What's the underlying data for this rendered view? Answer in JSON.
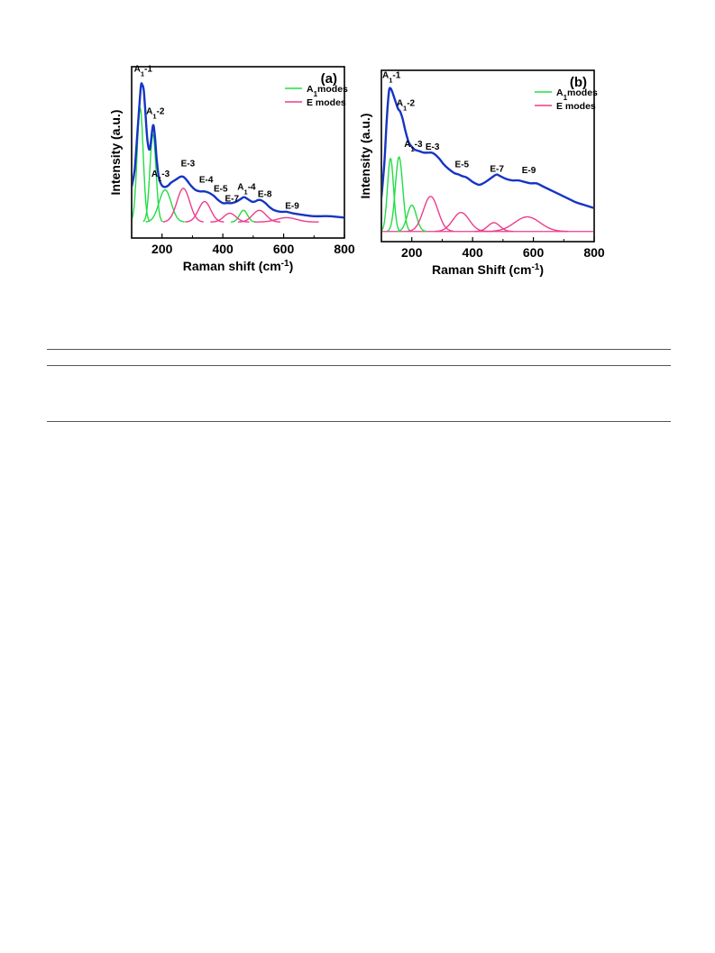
{
  "chart_data": [
    {
      "type": "line",
      "panel_label": "(a)",
      "xlabel_main": "Raman shift",
      "xlabel_paren_open": "(",
      "xlabel_unit": "cm",
      "xlabel_exp": "-1",
      "xlabel_paren_close": ")",
      "ylabel": "Intensity (a.u.)",
      "xlim": [
        100,
        800
      ],
      "ylim": [
        0,
        1
      ],
      "x_ticks": [
        "200",
        "400",
        "600",
        "800"
      ],
      "legend": [
        {
          "sym": "A",
          "sub": "1",
          "rest": "modes",
          "color": "#22dd44"
        },
        {
          "sym": "E modes",
          "sub": "",
          "rest": "",
          "color": "#ee3c8c"
        }
      ],
      "colors": {
        "envelope": "#1535c4",
        "a1": "#22dd44",
        "e": "#ee3c8c"
      },
      "baseline": 0.06,
      "series": [
        {
          "name": "A1 modes",
          "group": "a1",
          "peaks": [
            {
              "center": 128,
              "height": 0.78,
              "width": 10
            },
            {
              "center": 170,
              "height": 0.6,
              "width": 10
            },
            {
              "center": 210,
              "height": 0.22,
              "width": 20
            },
            {
              "center": 468,
              "height": 0.08,
              "width": 13
            }
          ]
        },
        {
          "name": "E modes",
          "group": "e",
          "peaks": [
            {
              "center": 270,
              "height": 0.23,
              "width": 21
            },
            {
              "center": 340,
              "height": 0.14,
              "width": 20
            },
            {
              "center": 423,
              "height": 0.06,
              "width": 20
            },
            {
              "center": 520,
              "height": 0.08,
              "width": 22
            },
            {
              "center": 610,
              "height": 0.03,
              "width": 33
            }
          ]
        },
        {
          "name": "envelope",
          "group": "env",
          "x": [
            100,
            110,
            120,
            130,
            135,
            140,
            145,
            152,
            160,
            170,
            176,
            182,
            190,
            200,
            210,
            220,
            230,
            245,
            260,
            270,
            280,
            295,
            310,
            325,
            340,
            355,
            370,
            385,
            400,
            415,
            430,
            445,
            460,
            470,
            480,
            495,
            505,
            515,
            525,
            540,
            555,
            570,
            590,
            610,
            630,
            660,
            700,
            750,
            800
          ],
          "y": [
            0.3,
            0.42,
            0.7,
            0.98,
            1.0,
            0.96,
            0.82,
            0.62,
            0.56,
            0.72,
            0.66,
            0.5,
            0.36,
            0.31,
            0.3,
            0.31,
            0.33,
            0.35,
            0.37,
            0.37,
            0.35,
            0.31,
            0.28,
            0.27,
            0.27,
            0.26,
            0.24,
            0.21,
            0.19,
            0.19,
            0.19,
            0.2,
            0.22,
            0.23,
            0.22,
            0.2,
            0.2,
            0.21,
            0.21,
            0.19,
            0.16,
            0.14,
            0.13,
            0.13,
            0.12,
            0.11,
            0.1,
            0.1,
            0.09
          ]
        }
      ],
      "annotations": [
        {
          "sym": "A",
          "sub": "1",
          "tail": "-1",
          "x": 138,
          "y": 1.09
        },
        {
          "sym": "A",
          "sub": "1",
          "tail": "-2",
          "x": 178,
          "y": 0.8
        },
        {
          "sym": "A",
          "sub": "1",
          "tail": "-3",
          "x": 195,
          "y": 0.37
        },
        {
          "sym": "E-3",
          "sub": "",
          "tail": "",
          "x": 285,
          "y": 0.44
        },
        {
          "sym": "E-4",
          "sub": "",
          "tail": "",
          "x": 345,
          "y": 0.33
        },
        {
          "sym": "E-5",
          "sub": "",
          "tail": "",
          "x": 393,
          "y": 0.27
        },
        {
          "sym": "E-7",
          "sub": "",
          "tail": "",
          "x": 430,
          "y": 0.2
        },
        {
          "sym": "A",
          "sub": "1",
          "tail": "-4",
          "x": 478,
          "y": 0.28
        },
        {
          "sym": "E-8",
          "sub": "",
          "tail": "",
          "x": 538,
          "y": 0.23
        },
        {
          "sym": "E-9",
          "sub": "",
          "tail": "",
          "x": 628,
          "y": 0.15
        }
      ]
    },
    {
      "type": "line",
      "panel_label": "(b)",
      "xlabel_main": "Raman Shift",
      "xlabel_paren_open": "(",
      "xlabel_unit": "cm",
      "xlabel_exp": "-1",
      "xlabel_paren_close": ")",
      "ylabel": "Intensity (a.u.)",
      "xlim": [
        100,
        800
      ],
      "ylim": [
        0,
        1
      ],
      "x_ticks": [
        "200",
        "400",
        "600",
        "800"
      ],
      "legend": [
        {
          "sym": "A",
          "sub": "1",
          "rest": "modes",
          "color": "#22dd44"
        },
        {
          "sym": "E modes",
          "sub": "",
          "rest": "",
          "color": "#ee3c8c"
        }
      ],
      "colors": {
        "envelope": "#1535c4",
        "a1": "#22dd44",
        "e": "#ee3c8c"
      },
      "baseline": 0.02,
      "series": [
        {
          "name": "A1 modes",
          "group": "a1",
          "peaks": [
            {
              "center": 130,
              "height": 0.5,
              "width": 10
            },
            {
              "center": 158,
              "height": 0.51,
              "width": 12
            },
            {
              "center": 200,
              "height": 0.18,
              "width": 15
            }
          ]
        },
        {
          "name": "E modes",
          "group": "e",
          "peaks": [
            {
              "center": 262,
              "height": 0.24,
              "width": 24
            },
            {
              "center": 362,
              "height": 0.13,
              "width": 27
            },
            {
              "center": 470,
              "height": 0.06,
              "width": 20
            },
            {
              "center": 580,
              "height": 0.1,
              "width": 42
            }
          ]
        },
        {
          "name": "envelope",
          "group": "env",
          "x": [
            100,
            110,
            118,
            125,
            130,
            135,
            140,
            148,
            155,
            162,
            170,
            180,
            190,
            200,
            210,
            225,
            240,
            255,
            265,
            275,
            290,
            305,
            320,
            340,
            355,
            365,
            380,
            400,
            420,
            435,
            450,
            470,
            480,
            490,
            510,
            530,
            550,
            570,
            590,
            610,
            630,
            660,
            700,
            740,
            770,
            800
          ],
          "y": [
            0.25,
            0.5,
            0.8,
            0.98,
            1.0,
            0.98,
            0.95,
            0.9,
            0.86,
            0.84,
            0.79,
            0.7,
            0.63,
            0.6,
            0.58,
            0.57,
            0.56,
            0.56,
            0.56,
            0.55,
            0.52,
            0.48,
            0.45,
            0.42,
            0.41,
            0.4,
            0.39,
            0.36,
            0.34,
            0.35,
            0.37,
            0.4,
            0.41,
            0.4,
            0.38,
            0.37,
            0.37,
            0.36,
            0.35,
            0.35,
            0.33,
            0.3,
            0.26,
            0.22,
            0.2,
            0.18
          ]
        }
      ],
      "annotations": [
        {
          "sym": "A",
          "sub": "1",
          "tail": "-1",
          "x": 133,
          "y": 1.07
        },
        {
          "sym": "A",
          "sub": "1",
          "tail": "-2",
          "x": 180,
          "y": 0.88
        },
        {
          "sym": "A",
          "sub": "1",
          "tail": "-3",
          "x": 205,
          "y": 0.6
        },
        {
          "sym": "E-3",
          "sub": "",
          "tail": "",
          "x": 268,
          "y": 0.58
        },
        {
          "sym": "E-5",
          "sub": "",
          "tail": "",
          "x": 365,
          "y": 0.46
        },
        {
          "sym": "E-7",
          "sub": "",
          "tail": "",
          "x": 480,
          "y": 0.43
        },
        {
          "sym": "E-9",
          "sub": "",
          "tail": "",
          "x": 585,
          "y": 0.42
        }
      ]
    }
  ]
}
